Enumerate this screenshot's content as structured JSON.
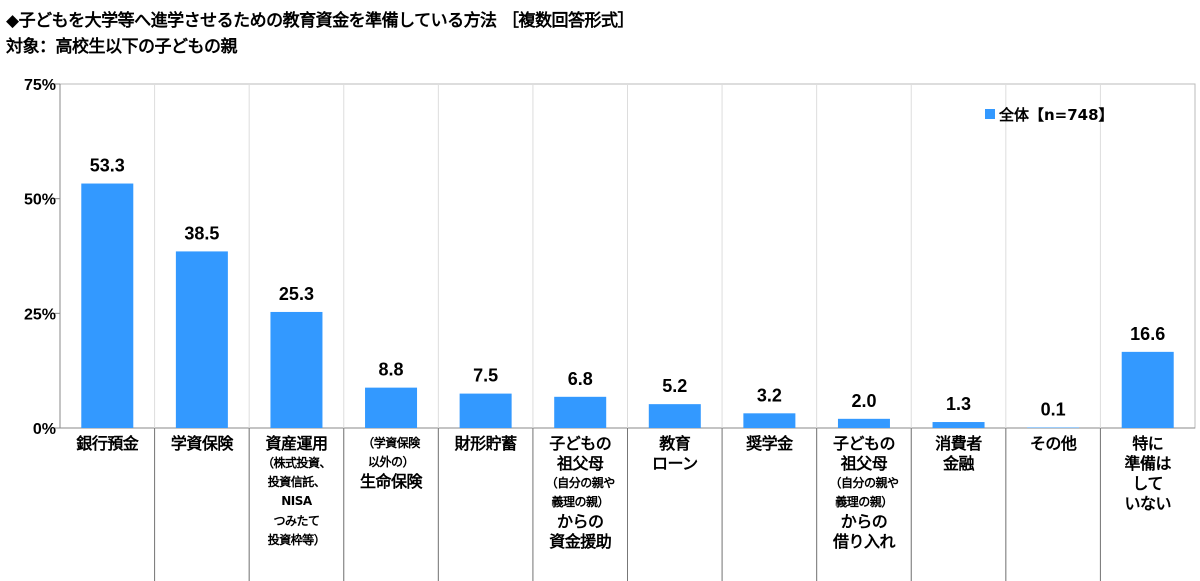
{
  "title": "◆子どもを大学等へ進学させるための教育資金を準備している方法 ［複数回答形式］",
  "subtitle": "対象：高校生以下の子どもの親",
  "chart_data": {
    "type": "bar",
    "title": "◆子どもを大学等へ進学させるための教育資金を準備している方法 ［複数回答形式］",
    "subtitle": "対象：高校生以下の子どもの親",
    "ylim": [
      0,
      75
    ],
    "yticks": [
      0,
      25,
      50,
      75
    ],
    "ytick_labels": [
      "0%",
      "25%",
      "50%",
      "75%"
    ],
    "grid": false,
    "legend_position": "top-right",
    "bar_color": "#3399ff",
    "series": [
      {
        "name": "全体【n=748】",
        "values": [
          53.3,
          38.5,
          25.3,
          8.8,
          7.5,
          6.8,
          5.2,
          3.2,
          2.0,
          1.3,
          0.1,
          16.6
        ]
      }
    ],
    "data_labels": [
      "53.3",
      "38.5",
      "25.3",
      "8.8",
      "7.5",
      "6.8",
      "5.2",
      "3.2",
      "2.0",
      "1.3",
      "0.1",
      "16.6"
    ],
    "categories": [
      [
        [
          "big",
          "銀行預金"
        ]
      ],
      [
        [
          "big",
          "学資保険"
        ]
      ],
      [
        [
          "big",
          "資産運用"
        ],
        [
          "small",
          "（株式投資、"
        ],
        [
          "small",
          "投資信託、"
        ],
        [
          "small",
          "NISA"
        ],
        [
          "small",
          "つみたて"
        ],
        [
          "small",
          "投資枠等）"
        ]
      ],
      [
        [
          "small",
          "（学資保険"
        ],
        [
          "small",
          "以外の）"
        ],
        [
          "big",
          "生命保険"
        ]
      ],
      [
        [
          "big",
          "財形貯蓄"
        ]
      ],
      [
        [
          "big",
          "子どもの"
        ],
        [
          "big",
          "祖父母"
        ],
        [
          "small",
          "（自分の親や"
        ],
        [
          "small",
          "義理の親）"
        ],
        [
          "big",
          "からの"
        ],
        [
          "big",
          "資金援助"
        ]
      ],
      [
        [
          "big",
          "教育"
        ],
        [
          "big",
          "ローン"
        ]
      ],
      [
        [
          "big",
          "奨学金"
        ]
      ],
      [
        [
          "big",
          "子どもの"
        ],
        [
          "big",
          "祖父母"
        ],
        [
          "small",
          "（自分の親や"
        ],
        [
          "small",
          "義理の親）"
        ],
        [
          "big",
          "からの"
        ],
        [
          "big",
          "借り入れ"
        ]
      ],
      [
        [
          "big",
          "消費者"
        ],
        [
          "big",
          "金融"
        ]
      ],
      [
        [
          "big",
          "その他"
        ]
      ],
      [
        [
          "big",
          "特に"
        ],
        [
          "big",
          "準備は"
        ],
        [
          "big",
          "して"
        ],
        [
          "big",
          "いない"
        ]
      ]
    ]
  }
}
